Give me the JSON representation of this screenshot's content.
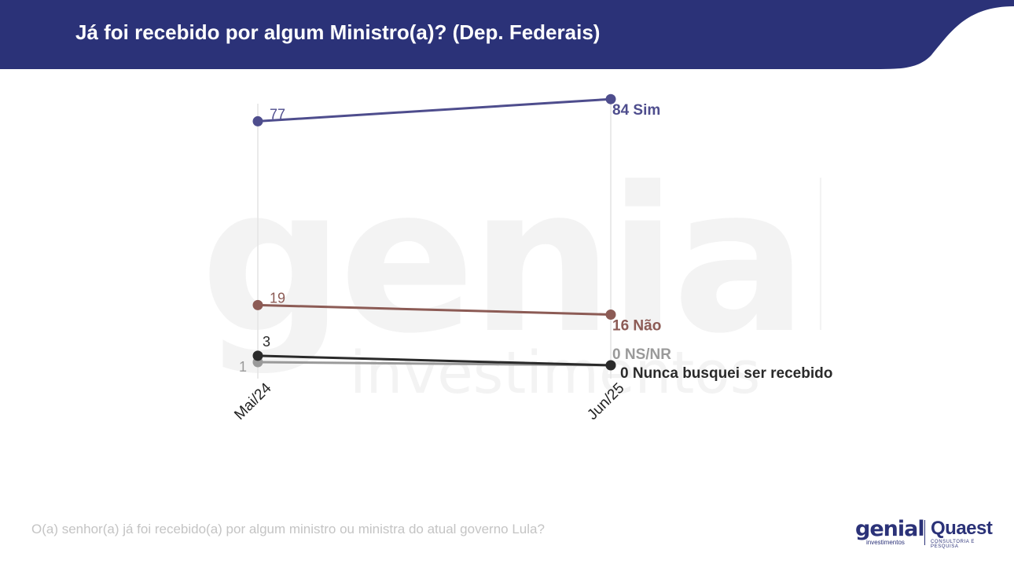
{
  "header": {
    "title": "Já foi recebido por algum Ministro(a)? (Dep. Federais)",
    "background_color": "#2b3278"
  },
  "watermark": {
    "word1": "genial",
    "word2": "investimentos"
  },
  "chart_data": {
    "type": "line",
    "categories": [
      "Mai/24",
      "Jun/25"
    ],
    "ylim": [
      0,
      90
    ],
    "grid": "vertical",
    "series": [
      {
        "name": "Sim",
        "values": [
          77,
          84
        ],
        "color": "#4e4d8d",
        "start_label": "77",
        "end_label": "84 Sim"
      },
      {
        "name": "Não",
        "values": [
          19,
          16
        ],
        "color": "#8c5b55",
        "start_label": "19",
        "end_label": "16 Não"
      },
      {
        "name": "Nunca busquei ser recebido",
        "values": [
          3,
          0
        ],
        "color": "#2a2a2a",
        "start_label": "3",
        "end_label": "0 Nunca busquei ser recebido"
      },
      {
        "name": "NS/NR",
        "values": [
          1,
          0
        ],
        "color": "#9a9a9a",
        "start_label": "1",
        "end_label": "0 NS/NR"
      }
    ]
  },
  "footer": {
    "question": "O(a) senhor(a) já foi recebido(a) por algum ministro ou ministra do atual governo Lula?"
  },
  "logos": {
    "genial": "genial",
    "genial_sub": "investimentos",
    "quaest": "Quaest",
    "quaest_sub": "CONSULTORIA E PESQUISA"
  }
}
